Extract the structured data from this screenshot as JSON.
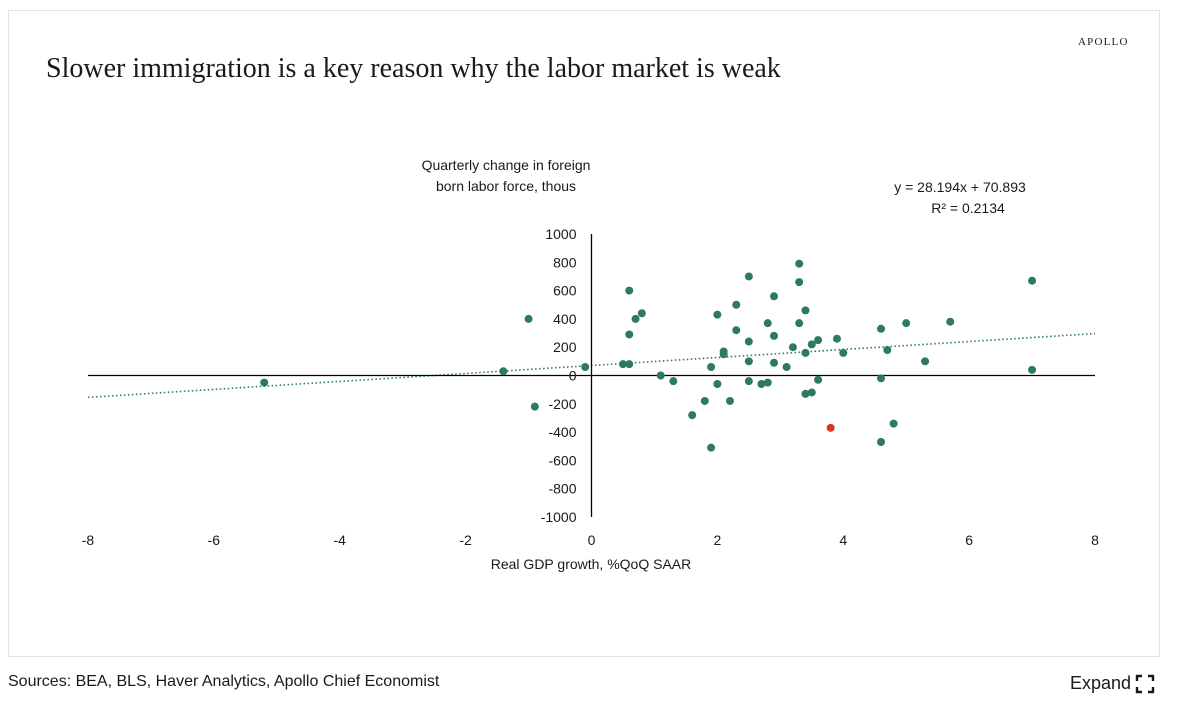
{
  "brand": "APOLLO",
  "title": "Slower immigration is a key reason why the labor market is weak",
  "footer": {
    "sources": "Sources: BEA, BLS, Haver Analytics, Apollo Chief Economist"
  },
  "expand": {
    "label": "Expand",
    "icon": "expand-icon"
  },
  "colors": {
    "point": "#2e7a5c",
    "highlight": "#d73a1e",
    "trend": "#2e7a5c",
    "axis": "#000000",
    "text": "#1a1a1a"
  },
  "chart_data": {
    "type": "scatter",
    "ylabel_lines": [
      "Quarterly change in foreign",
      "born labor force, thous"
    ],
    "xlabel": "Real GDP growth, %QoQ SAAR",
    "equation": "y = 28.194x + 70.893",
    "r_squared_label": "R² = 0.2134",
    "trendline": {
      "slope": 28.194,
      "intercept": 70.893
    },
    "xlim": [
      -8,
      8
    ],
    "ylim": [
      -1000,
      1000
    ],
    "xticks": [
      "-8",
      "-6",
      "-4",
      "-2",
      "0",
      "2",
      "4",
      "6",
      "8"
    ],
    "yticks": [
      "1000",
      "800",
      "600",
      "400",
      "200",
      "0",
      "-200",
      "-400",
      "-600",
      "-800",
      "-1000"
    ],
    "points": [
      {
        "x": -5.2,
        "y": -50
      },
      {
        "x": -1.4,
        "y": 30
      },
      {
        "x": -1.0,
        "y": 400
      },
      {
        "x": -0.9,
        "y": -220
      },
      {
        "x": -0.1,
        "y": 60
      },
      {
        "x": 0.5,
        "y": 80
      },
      {
        "x": 0.6,
        "y": 80
      },
      {
        "x": 0.6,
        "y": 600
      },
      {
        "x": 0.6,
        "y": 290
      },
      {
        "x": 0.7,
        "y": 400
      },
      {
        "x": 0.8,
        "y": 440
      },
      {
        "x": 1.1,
        "y": 0
      },
      {
        "x": 1.3,
        "y": -40
      },
      {
        "x": 1.6,
        "y": -280
      },
      {
        "x": 1.8,
        "y": -180
      },
      {
        "x": 1.9,
        "y": 60
      },
      {
        "x": 1.9,
        "y": -510
      },
      {
        "x": 2.0,
        "y": 430
      },
      {
        "x": 2.0,
        "y": -60
      },
      {
        "x": 2.1,
        "y": 170
      },
      {
        "x": 2.1,
        "y": 150
      },
      {
        "x": 2.2,
        "y": -180
      },
      {
        "x": 2.3,
        "y": 500
      },
      {
        "x": 2.3,
        "y": 320
      },
      {
        "x": 2.5,
        "y": 700
      },
      {
        "x": 2.5,
        "y": 240
      },
      {
        "x": 2.5,
        "y": 100
      },
      {
        "x": 2.5,
        "y": -40
      },
      {
        "x": 2.7,
        "y": -60
      },
      {
        "x": 2.8,
        "y": -50
      },
      {
        "x": 2.8,
        "y": 370
      },
      {
        "x": 2.9,
        "y": 560
      },
      {
        "x": 2.9,
        "y": 280
      },
      {
        "x": 2.9,
        "y": 90
      },
      {
        "x": 3.1,
        "y": 60
      },
      {
        "x": 3.2,
        "y": 200
      },
      {
        "x": 3.3,
        "y": 790
      },
      {
        "x": 3.3,
        "y": 660
      },
      {
        "x": 3.3,
        "y": 370
      },
      {
        "x": 3.4,
        "y": 460
      },
      {
        "x": 3.4,
        "y": 160
      },
      {
        "x": 3.4,
        "y": -130
      },
      {
        "x": 3.5,
        "y": 220
      },
      {
        "x": 3.5,
        "y": -120
      },
      {
        "x": 3.6,
        "y": 250
      },
      {
        "x": 3.6,
        "y": -30
      },
      {
        "x": 3.9,
        "y": 260
      },
      {
        "x": 4.0,
        "y": 160
      },
      {
        "x": 4.6,
        "y": 330
      },
      {
        "x": 4.6,
        "y": -20
      },
      {
        "x": 4.6,
        "y": -470
      },
      {
        "x": 4.7,
        "y": 180
      },
      {
        "x": 4.8,
        "y": -340
      },
      {
        "x": 5.0,
        "y": 370
      },
      {
        "x": 5.3,
        "y": 100
      },
      {
        "x": 5.7,
        "y": 380
      },
      {
        "x": 7.0,
        "y": 670
      },
      {
        "x": 7.0,
        "y": 40
      }
    ],
    "highlight_points": [
      {
        "x": 3.8,
        "y": -370
      }
    ]
  }
}
